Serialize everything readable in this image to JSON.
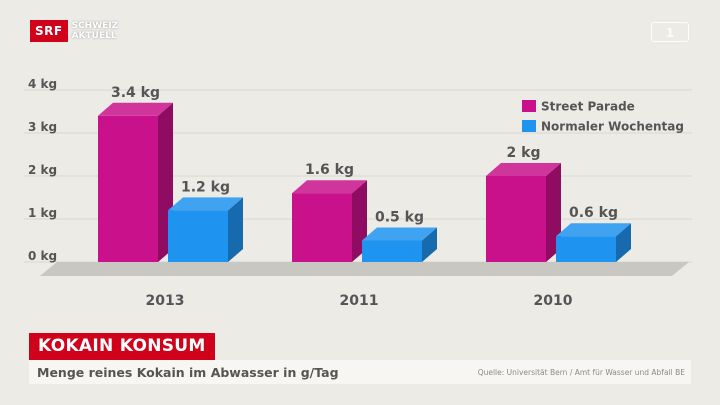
{
  "brand": {
    "logo": "SRF",
    "show_line1": "SCHWEIZ",
    "show_line2": "AKTUELL",
    "accent_color": "#d0021b"
  },
  "title": "KOKAIN KONSUM",
  "subtitle": "Menge reines  Kokain im Abwasser in g/Tag",
  "source": "Quelle: Universität Bern / Amt für Wasser und Abfall BE",
  "chart_data": {
    "type": "bar",
    "categories": [
      "2013",
      "2011",
      "2010"
    ],
    "series": [
      {
        "name": "Street Parade",
        "values": [
          3.4,
          1.6,
          2
        ],
        "labels": [
          "3.4 kg",
          "1.6 kg",
          "2 kg"
        ],
        "color": "#c8118a"
      },
      {
        "name": "Normaler Wochentag",
        "values": [
          1.2,
          0.5,
          0.6
        ],
        "labels": [
          "1.2 kg",
          "0.5 kg",
          "0.6 kg"
        ],
        "color": "#1e93f0"
      }
    ],
    "yticks": [
      "4 kg",
      "3 kg",
      "2 kg",
      "1 kg",
      "0 kg"
    ],
    "ylim": [
      0,
      4
    ],
    "grid": true,
    "legend_position": "top-right",
    "style": "3d"
  }
}
